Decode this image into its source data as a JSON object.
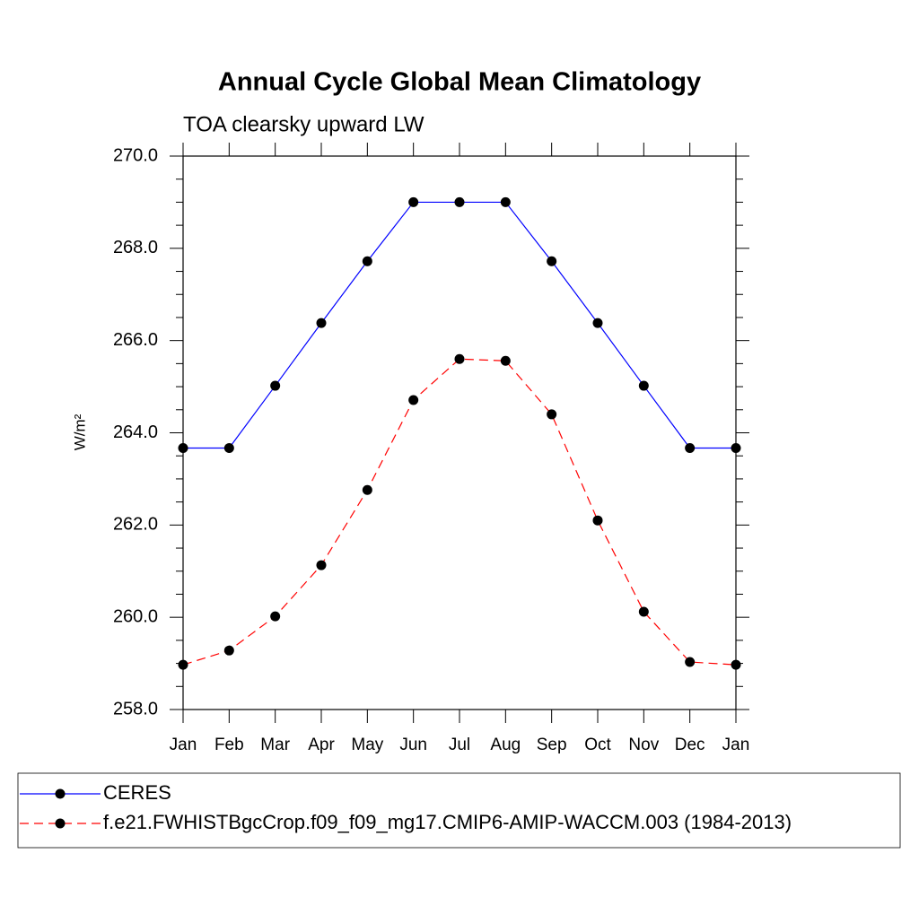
{
  "chart_data": {
    "type": "line",
    "title": "Annual Cycle Global Mean Climatology",
    "subtitle": "TOA clearsky upward LW",
    "ylabel": "W/m²",
    "categories": [
      "Jan",
      "Feb",
      "Mar",
      "Apr",
      "May",
      "Jun",
      "Jul",
      "Aug",
      "Sep",
      "Oct",
      "Nov",
      "Dec",
      "Jan"
    ],
    "series": [
      {
        "name": "CERES",
        "color": "#0000ff",
        "dash": "solid",
        "values": [
          263.67,
          263.67,
          265.02,
          266.38,
          267.72,
          269.0,
          269.0,
          269.0,
          267.72,
          266.38,
          265.02,
          263.67,
          263.67
        ]
      },
      {
        "name": "f.e21.FWHISTBgcCrop.f09_f09_mg17.CMIP6-AMIP-WACCM.003 (1984-2013)",
        "color": "#ff0000",
        "dash": "dashed",
        "values": [
          258.97,
          259.28,
          260.02,
          261.13,
          262.76,
          264.71,
          265.6,
          265.56,
          264.4,
          262.1,
          260.12,
          259.03,
          258.97
        ]
      }
    ],
    "ylim": [
      258,
      270
    ],
    "yticks": [
      {
        "value": 258,
        "label": "258.0"
      },
      {
        "value": 260,
        "label": "260.0"
      },
      {
        "value": 262,
        "label": "262.0"
      },
      {
        "value": 264,
        "label": "264.0"
      },
      {
        "value": 266,
        "label": "266.0"
      },
      {
        "value": 268,
        "label": "268.0"
      },
      {
        "value": 270,
        "label": "270.0"
      }
    ],
    "yminorticks": [
      258.5,
      259,
      259.5,
      260.5,
      261,
      261.5,
      262.5,
      263,
      263.5,
      264.5,
      265,
      265.5,
      266.5,
      267,
      267.5,
      268.5,
      269,
      269.5
    ],
    "grid": false
  }
}
